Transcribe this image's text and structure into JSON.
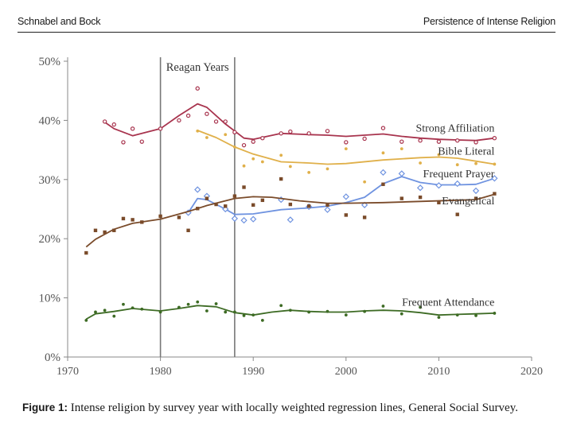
{
  "header": {
    "authors": "Schnabel and Bock",
    "running_title": "Persistence of Intense Religion"
  },
  "caption": {
    "label": "Figure 1:",
    "text": " Intense religion by survey year with locally weighted regression lines, General Social Survey."
  },
  "chart_data": {
    "type": "scatter",
    "title": "",
    "xlabel": "",
    "ylabel": "",
    "xlim": [
      1970,
      2020
    ],
    "ylim": [
      0,
      50
    ],
    "x_ticks": [
      "1970",
      "1980",
      "1990",
      "2000",
      "2010",
      "2020"
    ],
    "y_ticks": [
      "0%",
      "10%",
      "20%",
      "30%",
      "40%",
      "50%"
    ],
    "grid": false,
    "annotations": {
      "reagan_label": "Reagan Years",
      "reagan_start": 1980,
      "reagan_end": 1988
    },
    "series": [
      {
        "name": "Strong Affiliation",
        "color": "#a8344e",
        "marker": "circle",
        "label_at": [
          2016,
          38.1
        ],
        "points": [
          [
            1974,
            39.8
          ],
          [
            1975,
            39.3
          ],
          [
            1976,
            36.3
          ],
          [
            1977,
            38.6
          ],
          [
            1978,
            36.4
          ],
          [
            1980,
            38.6
          ],
          [
            1982,
            40.0
          ],
          [
            1983,
            40.8
          ],
          [
            1984,
            45.4
          ],
          [
            1985,
            41.1
          ],
          [
            1986,
            39.8
          ],
          [
            1987,
            39.8
          ],
          [
            1988,
            38.0
          ],
          [
            1989,
            35.8
          ],
          [
            1990,
            36.4
          ],
          [
            1991,
            37.0
          ],
          [
            1993,
            37.8
          ],
          [
            1994,
            38.1
          ],
          [
            1996,
            37.8
          ],
          [
            1998,
            38.2
          ],
          [
            2000,
            36.3
          ],
          [
            2002,
            36.9
          ],
          [
            2004,
            38.7
          ],
          [
            2006,
            36.4
          ],
          [
            2008,
            36.6
          ],
          [
            2010,
            36.4
          ],
          [
            2012,
            36.6
          ],
          [
            2014,
            36.3
          ],
          [
            2016,
            37.0
          ]
        ],
        "trend": [
          [
            1974,
            39.7
          ],
          [
            1975,
            38.6
          ],
          [
            1977,
            37.4
          ],
          [
            1980,
            38.6
          ],
          [
            1982,
            40.8
          ],
          [
            1984,
            42.8
          ],
          [
            1985,
            42.2
          ],
          [
            1987,
            39.4
          ],
          [
            1989,
            37.0
          ],
          [
            1990,
            36.8
          ],
          [
            1993,
            37.8
          ],
          [
            1996,
            37.6
          ],
          [
            1998,
            37.5
          ],
          [
            2000,
            37.3
          ],
          [
            2004,
            37.7
          ],
          [
            2006,
            37.3
          ],
          [
            2008,
            37.0
          ],
          [
            2010,
            36.8
          ],
          [
            2012,
            36.7
          ],
          [
            2014,
            36.6
          ],
          [
            2016,
            37.0
          ]
        ]
      },
      {
        "name": "Bible Literal",
        "color": "#e0b04a",
        "marker": "dot",
        "label_at": [
          2016,
          34.2
        ],
        "points": [
          [
            1984,
            38.2
          ],
          [
            1985,
            37.1
          ],
          [
            1987,
            37.6
          ],
          [
            1988,
            35.5
          ],
          [
            1989,
            32.3
          ],
          [
            1990,
            33.5
          ],
          [
            1991,
            33.0
          ],
          [
            1993,
            34.1
          ],
          [
            1994,
            32.2
          ],
          [
            1996,
            31.2
          ],
          [
            1998,
            31.8
          ],
          [
            2000,
            35.2
          ],
          [
            2002,
            29.6
          ],
          [
            2004,
            34.5
          ],
          [
            2006,
            35.2
          ],
          [
            2008,
            32.8
          ],
          [
            2010,
            34.2
          ],
          [
            2012,
            32.5
          ],
          [
            2014,
            32.7
          ],
          [
            2016,
            32.6
          ]
        ],
        "trend": [
          [
            1984,
            38.3
          ],
          [
            1986,
            37.1
          ],
          [
            1988,
            35.5
          ],
          [
            1990,
            34.3
          ],
          [
            1993,
            33.0
          ],
          [
            1996,
            32.8
          ],
          [
            1998,
            32.6
          ],
          [
            2000,
            32.7
          ],
          [
            2004,
            33.3
          ],
          [
            2008,
            33.7
          ],
          [
            2010,
            33.8
          ],
          [
            2012,
            33.6
          ],
          [
            2014,
            33.1
          ],
          [
            2016,
            32.6
          ]
        ]
      },
      {
        "name": "Frequent Prayer",
        "color": "#6f93e0",
        "marker": "diamond",
        "label_at": [
          2016,
          30.4
        ],
        "points": [
          [
            1983,
            24.4
          ],
          [
            1984,
            28.3
          ],
          [
            1985,
            27.2
          ],
          [
            1987,
            25.0
          ],
          [
            1988,
            23.4
          ],
          [
            1989,
            23.1
          ],
          [
            1990,
            23.3
          ],
          [
            1993,
            26.6
          ],
          [
            1994,
            23.2
          ],
          [
            1996,
            25.4
          ],
          [
            1998,
            24.9
          ],
          [
            2000,
            27.1
          ],
          [
            2002,
            25.7
          ],
          [
            2004,
            31.2
          ],
          [
            2006,
            31.0
          ],
          [
            2008,
            28.6
          ],
          [
            2010,
            29.0
          ],
          [
            2012,
            29.3
          ],
          [
            2014,
            28.1
          ],
          [
            2016,
            30.2
          ]
        ],
        "trend": [
          [
            1983,
            24.4
          ],
          [
            1984,
            26.8
          ],
          [
            1985,
            26.6
          ],
          [
            1987,
            25.0
          ],
          [
            1988,
            24.1
          ],
          [
            1990,
            24.2
          ],
          [
            1993,
            24.9
          ],
          [
            1996,
            25.2
          ],
          [
            1998,
            25.5
          ],
          [
            2000,
            26.1
          ],
          [
            2002,
            27.0
          ],
          [
            2004,
            29.3
          ],
          [
            2006,
            30.5
          ],
          [
            2008,
            29.5
          ],
          [
            2010,
            29.1
          ],
          [
            2012,
            29.1
          ],
          [
            2014,
            29.2
          ],
          [
            2016,
            30.2
          ]
        ]
      },
      {
        "name": "Evangelical",
        "color": "#7a4b2a",
        "marker": "square",
        "label_at": [
          2016,
          25.8
        ],
        "points": [
          [
            1972,
            17.6
          ],
          [
            1973,
            21.4
          ],
          [
            1974,
            21.1
          ],
          [
            1975,
            21.4
          ],
          [
            1976,
            23.4
          ],
          [
            1977,
            23.2
          ],
          [
            1978,
            22.8
          ],
          [
            1980,
            23.8
          ],
          [
            1982,
            23.6
          ],
          [
            1983,
            21.4
          ],
          [
            1984,
            25.1
          ],
          [
            1985,
            26.8
          ],
          [
            1986,
            25.8
          ],
          [
            1987,
            25.5
          ],
          [
            1988,
            27.2
          ],
          [
            1989,
            28.7
          ],
          [
            1990,
            25.7
          ],
          [
            1991,
            26.5
          ],
          [
            1993,
            30.1
          ],
          [
            1994,
            25.8
          ],
          [
            1996,
            25.5
          ],
          [
            1998,
            25.7
          ],
          [
            2000,
            24.0
          ],
          [
            2002,
            23.6
          ],
          [
            2004,
            29.2
          ],
          [
            2006,
            26.8
          ],
          [
            2008,
            27.0
          ],
          [
            2010,
            26.1
          ],
          [
            2012,
            24.1
          ],
          [
            2014,
            26.8
          ],
          [
            2016,
            27.6
          ]
        ],
        "trend": [
          [
            1972,
            18.6
          ],
          [
            1973,
            19.9
          ],
          [
            1975,
            21.6
          ],
          [
            1977,
            22.6
          ],
          [
            1980,
            23.3
          ],
          [
            1983,
            24.6
          ],
          [
            1985,
            25.6
          ],
          [
            1988,
            26.8
          ],
          [
            1990,
            27.1
          ],
          [
            1992,
            27.0
          ],
          [
            1995,
            26.4
          ],
          [
            1998,
            26.0
          ],
          [
            2000,
            26.0
          ],
          [
            2004,
            26.1
          ],
          [
            2008,
            26.3
          ],
          [
            2012,
            26.5
          ],
          [
            2014,
            26.6
          ],
          [
            2016,
            27.5
          ]
        ]
      },
      {
        "name": "Frequent Attendance",
        "color": "#3d6b24",
        "marker": "dot",
        "label_at": [
          2016,
          8.7
        ],
        "points": [
          [
            1972,
            6.2
          ],
          [
            1973,
            7.6
          ],
          [
            1974,
            7.9
          ],
          [
            1975,
            6.9
          ],
          [
            1976,
            8.9
          ],
          [
            1977,
            8.3
          ],
          [
            1978,
            8.1
          ],
          [
            1980,
            7.6
          ],
          [
            1982,
            8.4
          ],
          [
            1983,
            8.9
          ],
          [
            1984,
            9.3
          ],
          [
            1985,
            7.8
          ],
          [
            1986,
            9.0
          ],
          [
            1987,
            7.6
          ],
          [
            1988,
            7.6
          ],
          [
            1989,
            7.0
          ],
          [
            1990,
            7.1
          ],
          [
            1991,
            6.2
          ],
          [
            1993,
            8.7
          ],
          [
            1994,
            7.9
          ],
          [
            1996,
            7.6
          ],
          [
            1998,
            7.7
          ],
          [
            2000,
            7.1
          ],
          [
            2002,
            7.7
          ],
          [
            2004,
            8.6
          ],
          [
            2006,
            7.3
          ],
          [
            2008,
            8.4
          ],
          [
            2010,
            6.7
          ],
          [
            2012,
            7.1
          ],
          [
            2014,
            7.0
          ],
          [
            2016,
            7.4
          ]
        ],
        "trend": [
          [
            1972,
            6.4
          ],
          [
            1973,
            7.3
          ],
          [
            1975,
            7.7
          ],
          [
            1977,
            8.2
          ],
          [
            1980,
            7.8
          ],
          [
            1982,
            8.2
          ],
          [
            1984,
            8.7
          ],
          [
            1986,
            8.5
          ],
          [
            1988,
            7.5
          ],
          [
            1990,
            7.1
          ],
          [
            1992,
            7.6
          ],
          [
            1994,
            7.9
          ],
          [
            1996,
            7.7
          ],
          [
            1998,
            7.6
          ],
          [
            2000,
            7.6
          ],
          [
            2002,
            7.8
          ],
          [
            2004,
            7.9
          ],
          [
            2006,
            7.8
          ],
          [
            2008,
            7.5
          ],
          [
            2010,
            7.1
          ],
          [
            2012,
            7.2
          ],
          [
            2014,
            7.3
          ],
          [
            2016,
            7.4
          ]
        ]
      }
    ]
  }
}
